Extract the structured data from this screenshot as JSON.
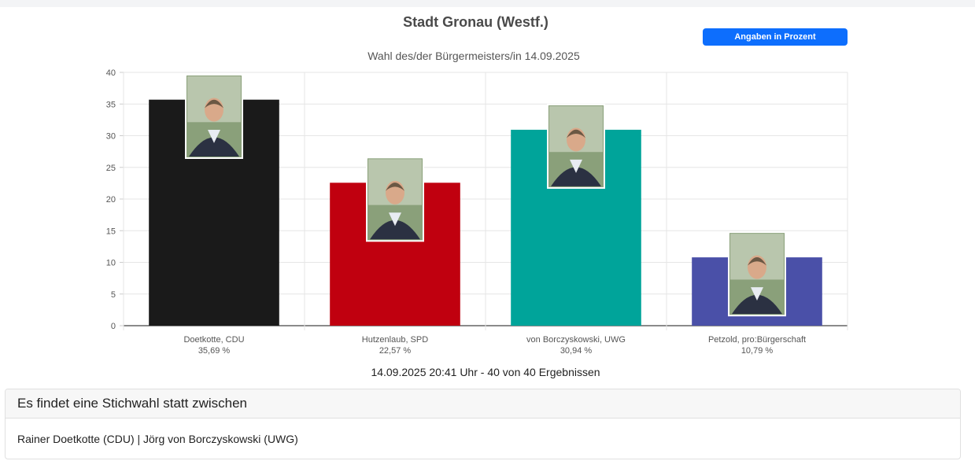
{
  "header": {
    "title": "Stadt Gronau (Westf.)",
    "subtitle": "Wahl des/der Bürgermeisters/in 14.09.2025",
    "percent_button_label": "Angaben in Prozent"
  },
  "chart_data": {
    "type": "bar",
    "title": "Stadt Gronau (Westf.)",
    "subtitle": "Wahl des/der Bürgermeisters/in 14.09.2025",
    "ylim": [
      0,
      40
    ],
    "yticks": [
      0,
      5,
      10,
      15,
      20,
      25,
      30,
      35,
      40
    ],
    "grid": true,
    "categories": [
      "Doetkotte, CDU",
      "Hutzenlaub, SPD",
      "von Borczyskowski, UWG",
      "Petzold, pro:Bürgerschaft"
    ],
    "value_labels": [
      "35,69 %",
      "22,57 %",
      "30,94 %",
      "10,79 %"
    ],
    "values": [
      35.69,
      22.57,
      30.94,
      10.79
    ],
    "colors": [
      "#1a1a1a",
      "#c0000f",
      "#00a49a",
      "#4a50a8"
    ]
  },
  "footer": {
    "timestamp": "14.09.2025 20:41 Uhr - 40 von 40 Ergebnissen"
  },
  "runoff": {
    "heading": "Es findet eine Stichwahl statt zwischen",
    "candidates": "Rainer Doetkotte (CDU) | Jörg von Borczyskowski (UWG)"
  }
}
